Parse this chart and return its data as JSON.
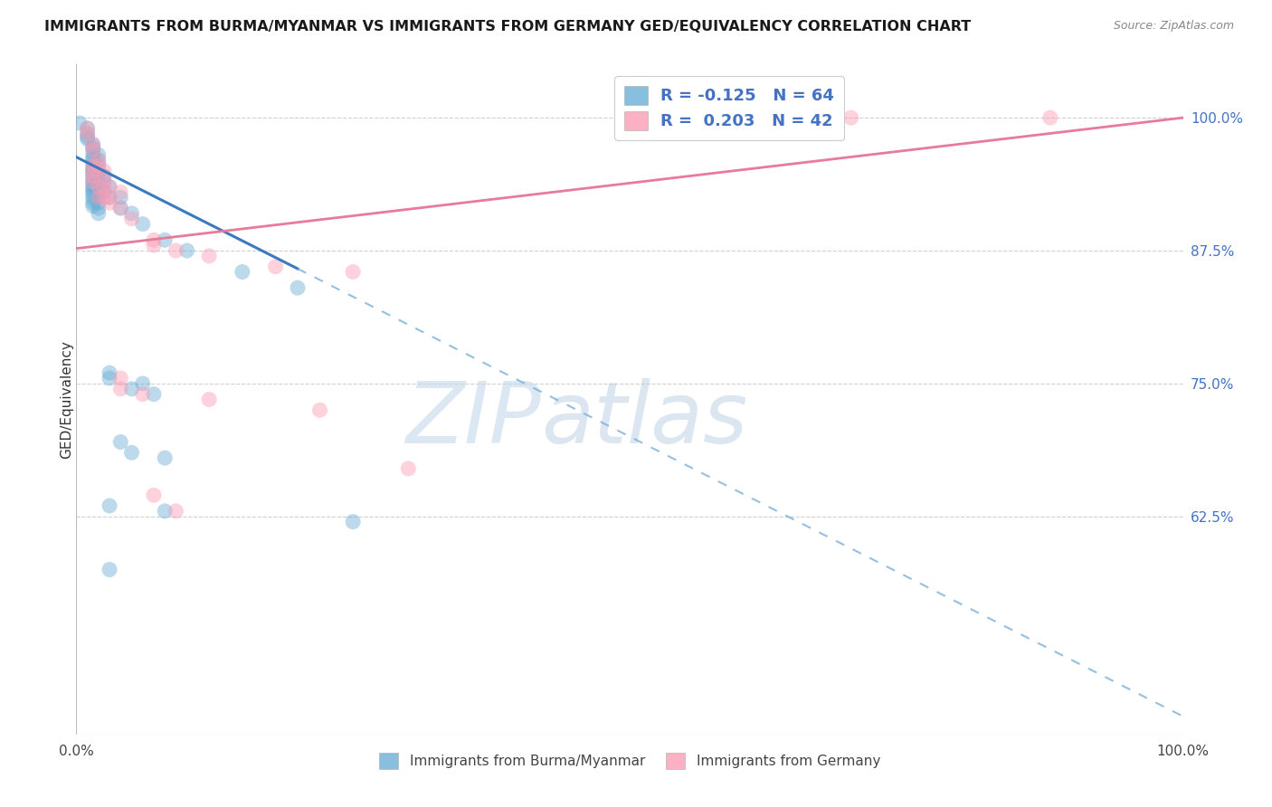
{
  "title": "IMMIGRANTS FROM BURMA/MYANMAR VS IMMIGRANTS FROM GERMANY GED/EQUIVALENCY CORRELATION CHART",
  "source": "Source: ZipAtlas.com",
  "ylabel": "GED/Equivalency",
  "ytick_labels": [
    "100.0%",
    "87.5%",
    "75.0%",
    "62.5%"
  ],
  "ytick_values": [
    1.0,
    0.875,
    0.75,
    0.625
  ],
  "legend_bottom": [
    "Immigrants from Burma/Myanmar",
    "Immigrants from Germany"
  ],
  "blue_color": "#6baed6",
  "pink_color": "#fc9cb4",
  "watermark_zip": "ZIP",
  "watermark_atlas": "atlas",
  "blue_scatter": [
    [
      0.003,
      0.995
    ],
    [
      0.01,
      0.99
    ],
    [
      0.01,
      0.985
    ],
    [
      0.01,
      0.982
    ],
    [
      0.01,
      0.98
    ],
    [
      0.015,
      0.975
    ],
    [
      0.015,
      0.972
    ],
    [
      0.015,
      0.97
    ],
    [
      0.015,
      0.965
    ],
    [
      0.015,
      0.962
    ],
    [
      0.015,
      0.96
    ],
    [
      0.015,
      0.955
    ],
    [
      0.015,
      0.952
    ],
    [
      0.015,
      0.95
    ],
    [
      0.015,
      0.948
    ],
    [
      0.015,
      0.945
    ],
    [
      0.015,
      0.942
    ],
    [
      0.015,
      0.94
    ],
    [
      0.015,
      0.937
    ],
    [
      0.015,
      0.935
    ],
    [
      0.015,
      0.932
    ],
    [
      0.015,
      0.93
    ],
    [
      0.015,
      0.927
    ],
    [
      0.015,
      0.924
    ],
    [
      0.015,
      0.92
    ],
    [
      0.015,
      0.917
    ],
    [
      0.02,
      0.965
    ],
    [
      0.02,
      0.96
    ],
    [
      0.02,
      0.955
    ],
    [
      0.02,
      0.95
    ],
    [
      0.02,
      0.945
    ],
    [
      0.02,
      0.94
    ],
    [
      0.02,
      0.935
    ],
    [
      0.02,
      0.93
    ],
    [
      0.02,
      0.925
    ],
    [
      0.02,
      0.92
    ],
    [
      0.02,
      0.915
    ],
    [
      0.02,
      0.91
    ],
    [
      0.025,
      0.945
    ],
    [
      0.025,
      0.94
    ],
    [
      0.025,
      0.93
    ],
    [
      0.03,
      0.935
    ],
    [
      0.03,
      0.925
    ],
    [
      0.04,
      0.925
    ],
    [
      0.04,
      0.915
    ],
    [
      0.05,
      0.91
    ],
    [
      0.06,
      0.9
    ],
    [
      0.08,
      0.885
    ],
    [
      0.1,
      0.875
    ],
    [
      0.15,
      0.855
    ],
    [
      0.2,
      0.84
    ],
    [
      0.03,
      0.76
    ],
    [
      0.03,
      0.755
    ],
    [
      0.05,
      0.745
    ],
    [
      0.06,
      0.75
    ],
    [
      0.07,
      0.74
    ],
    [
      0.04,
      0.695
    ],
    [
      0.05,
      0.685
    ],
    [
      0.08,
      0.68
    ],
    [
      0.03,
      0.635
    ],
    [
      0.08,
      0.63
    ],
    [
      0.03,
      0.575
    ],
    [
      0.25,
      0.62
    ]
  ],
  "pink_scatter": [
    [
      0.01,
      0.99
    ],
    [
      0.01,
      0.985
    ],
    [
      0.015,
      0.975
    ],
    [
      0.015,
      0.97
    ],
    [
      0.015,
      0.955
    ],
    [
      0.015,
      0.95
    ],
    [
      0.015,
      0.945
    ],
    [
      0.015,
      0.94
    ],
    [
      0.02,
      0.96
    ],
    [
      0.02,
      0.955
    ],
    [
      0.02,
      0.935
    ],
    [
      0.02,
      0.925
    ],
    [
      0.025,
      0.95
    ],
    [
      0.025,
      0.945
    ],
    [
      0.025,
      0.935
    ],
    [
      0.025,
      0.925
    ],
    [
      0.03,
      0.935
    ],
    [
      0.03,
      0.925
    ],
    [
      0.03,
      0.92
    ],
    [
      0.04,
      0.93
    ],
    [
      0.04,
      0.915
    ],
    [
      0.05,
      0.905
    ],
    [
      0.07,
      0.885
    ],
    [
      0.07,
      0.88
    ],
    [
      0.09,
      0.875
    ],
    [
      0.12,
      0.87
    ],
    [
      0.18,
      0.86
    ],
    [
      0.25,
      0.855
    ],
    [
      0.04,
      0.755
    ],
    [
      0.04,
      0.745
    ],
    [
      0.06,
      0.74
    ],
    [
      0.12,
      0.735
    ],
    [
      0.22,
      0.725
    ],
    [
      0.07,
      0.645
    ],
    [
      0.09,
      0.63
    ],
    [
      0.3,
      0.67
    ],
    [
      0.7,
      1.0
    ],
    [
      0.88,
      1.0
    ]
  ],
  "blue_line_solid": {
    "x0": 0.0,
    "y0": 0.963,
    "x1": 0.2,
    "y1": 0.858
  },
  "blue_line_dashed": {
    "x0": 0.2,
    "y0": 0.858,
    "x1": 1.0,
    "y1": 0.437
  },
  "pink_line": {
    "x0": 0.0,
    "y0": 0.877,
    "x1": 1.0,
    "y1": 1.0
  },
  "xmin": 0.0,
  "xmax": 1.0,
  "ymin": 0.42,
  "ymax": 1.05
}
